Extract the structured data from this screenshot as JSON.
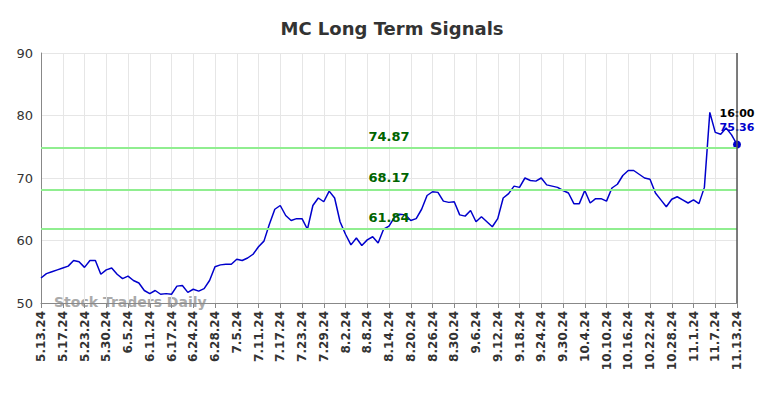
{
  "chart_data": {
    "type": "line",
    "title": "MC Long Term Signals",
    "watermark": "Stock Traders Daily",
    "categories": [
      "5.13.24",
      null,
      null,
      null,
      "5.17.24",
      null,
      null,
      null,
      "5.23.24",
      null,
      null,
      null,
      "5.30.24",
      null,
      null,
      null,
      "6.5.24",
      null,
      null,
      null,
      "6.11.24",
      null,
      null,
      null,
      "6.17.24",
      null,
      null,
      null,
      "6.24.24",
      null,
      null,
      null,
      "6.28.24",
      null,
      null,
      null,
      "7.5.24",
      null,
      null,
      null,
      "7.11.24",
      null,
      null,
      null,
      "7.17.24",
      null,
      null,
      null,
      "7.23.24",
      null,
      null,
      null,
      "7.29.24",
      null,
      null,
      null,
      "8.2.24",
      null,
      null,
      null,
      "8.8.24",
      null,
      null,
      null,
      "8.14.24",
      null,
      null,
      null,
      "8.20.24",
      null,
      null,
      null,
      "8.26.24",
      null,
      null,
      null,
      "8.30.24",
      null,
      null,
      null,
      "9.6.24",
      null,
      null,
      null,
      "9.12.24",
      null,
      null,
      null,
      "9.18.24",
      null,
      null,
      null,
      "9.24.24",
      null,
      null,
      null,
      "9.30.24",
      null,
      null,
      null,
      "10.4.24",
      null,
      null,
      null,
      "10.10.24",
      null,
      null,
      null,
      "10.16.24",
      null,
      null,
      null,
      "10.22.24",
      null,
      null,
      null,
      "10.28.24",
      null,
      null,
      null,
      "11.1.24",
      null,
      null,
      null,
      "11.7.24",
      null,
      null,
      null,
      "11.13.24"
    ],
    "values": [
      54.0,
      54.7,
      55.0,
      55.3,
      55.6,
      55.9,
      56.8,
      56.6,
      55.7,
      56.8,
      56.8,
      54.6,
      55.3,
      55.6,
      54.6,
      53.9,
      54.3,
      53.6,
      53.2,
      52.0,
      51.5,
      52.0,
      51.4,
      51.5,
      51.4,
      52.7,
      52.8,
      51.7,
      52.2,
      51.9,
      52.3,
      53.6,
      55.8,
      56.1,
      56.2,
      56.2,
      57.0,
      56.8,
      57.2,
      57.8,
      59.0,
      59.9,
      62.6,
      65.0,
      65.6,
      64.0,
      63.2,
      63.5,
      63.5,
      61.8,
      65.6,
      66.8,
      66.2,
      67.9,
      66.8,
      63.0,
      61.0,
      59.3,
      60.4,
      59.2,
      60.1,
      60.6,
      59.6,
      61.8,
      62.3,
      63.7,
      64.2,
      64.1,
      63.2,
      63.5,
      65.0,
      67.2,
      67.8,
      67.7,
      66.3,
      66.1,
      66.2,
      64.1,
      63.9,
      64.8,
      63.0,
      63.8,
      63.0,
      62.2,
      63.5,
      66.8,
      67.5,
      68.7,
      68.5,
      70.0,
      69.6,
      69.5,
      70.0,
      68.9,
      68.7,
      68.5,
      68.0,
      67.6,
      65.9,
      65.9,
      68.0,
      66.0,
      66.7,
      66.7,
      66.3,
      68.4,
      69.0,
      70.4,
      71.2,
      71.2,
      70.6,
      70.0,
      69.8,
      67.6,
      66.5,
      65.4,
      66.6,
      67.0,
      66.5,
      66.0,
      66.5,
      65.9,
      68.5,
      80.5,
      77.3,
      77.0,
      78.0,
      76.9,
      75.36
    ],
    "color": "#0000cc",
    "signal_lines": [
      74.87,
      68.17,
      61.84
    ],
    "signal_color": "#90ee90",
    "last_time_label": "16:00",
    "ylim": [
      50,
      90
    ],
    "yticks": [
      50,
      60,
      70,
      80,
      90
    ],
    "grid": true
  }
}
